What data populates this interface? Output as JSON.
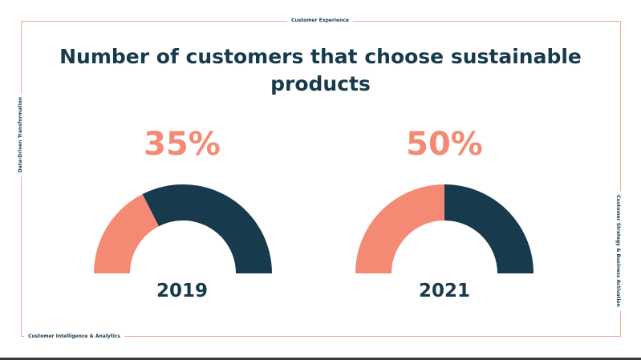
{
  "edge_labels": {
    "top": "Customer Experience",
    "left": "Data-Driven Transformation",
    "right": "Customer Strategy & Business Activation",
    "bottom": "Customer Intelligence & Analytics"
  },
  "colors": {
    "frame": "#f2a99b",
    "navy": "#173a4d",
    "salmon": "#f48a74"
  },
  "chart_data": {
    "type": "gauge",
    "title": "Number of customers that choose sustainable products",
    "range": [
      0,
      100
    ],
    "series": [
      {
        "category": "2019",
        "value": 35,
        "value_label": "35%"
      },
      {
        "category": "2021",
        "value": 50,
        "value_label": "50%"
      }
    ]
  }
}
